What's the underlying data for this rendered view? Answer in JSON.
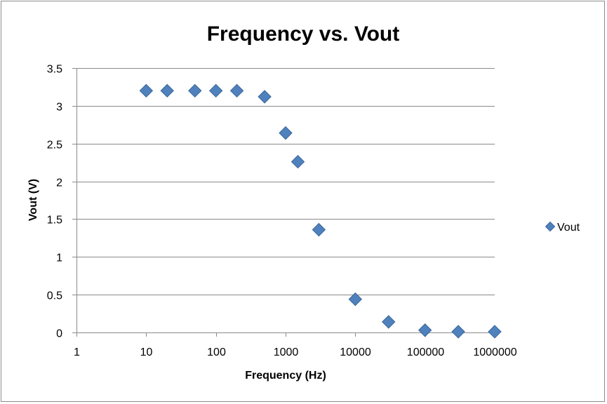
{
  "chart_data": {
    "type": "scatter",
    "title": "Frequency vs. Vout",
    "xlabel": "Frequency (Hz)",
    "ylabel": "Vout (V)",
    "x_scale": "log",
    "xlim": [
      1,
      1000000
    ],
    "ylim": [
      0,
      3.5
    ],
    "x_ticks": [
      "1",
      "10",
      "100",
      "1000",
      "10000",
      "100000",
      "1000000"
    ],
    "y_ticks": [
      "0",
      "0.5",
      "1",
      "1.5",
      "2",
      "2.5",
      "3",
      "3.5"
    ],
    "grid": "horizontal",
    "legend_position": "right",
    "series": [
      {
        "name": "Vout",
        "color": "#4f81bd",
        "marker": "diamond",
        "x": [
          10,
          20,
          50,
          100,
          200,
          500,
          1000,
          1500,
          3000,
          10000,
          30000,
          100000,
          300000,
          1000000
        ],
        "y": [
          3.2,
          3.2,
          3.2,
          3.2,
          3.2,
          3.12,
          2.64,
          2.26,
          1.36,
          0.44,
          0.14,
          0.03,
          0.01,
          0.01
        ]
      }
    ]
  }
}
